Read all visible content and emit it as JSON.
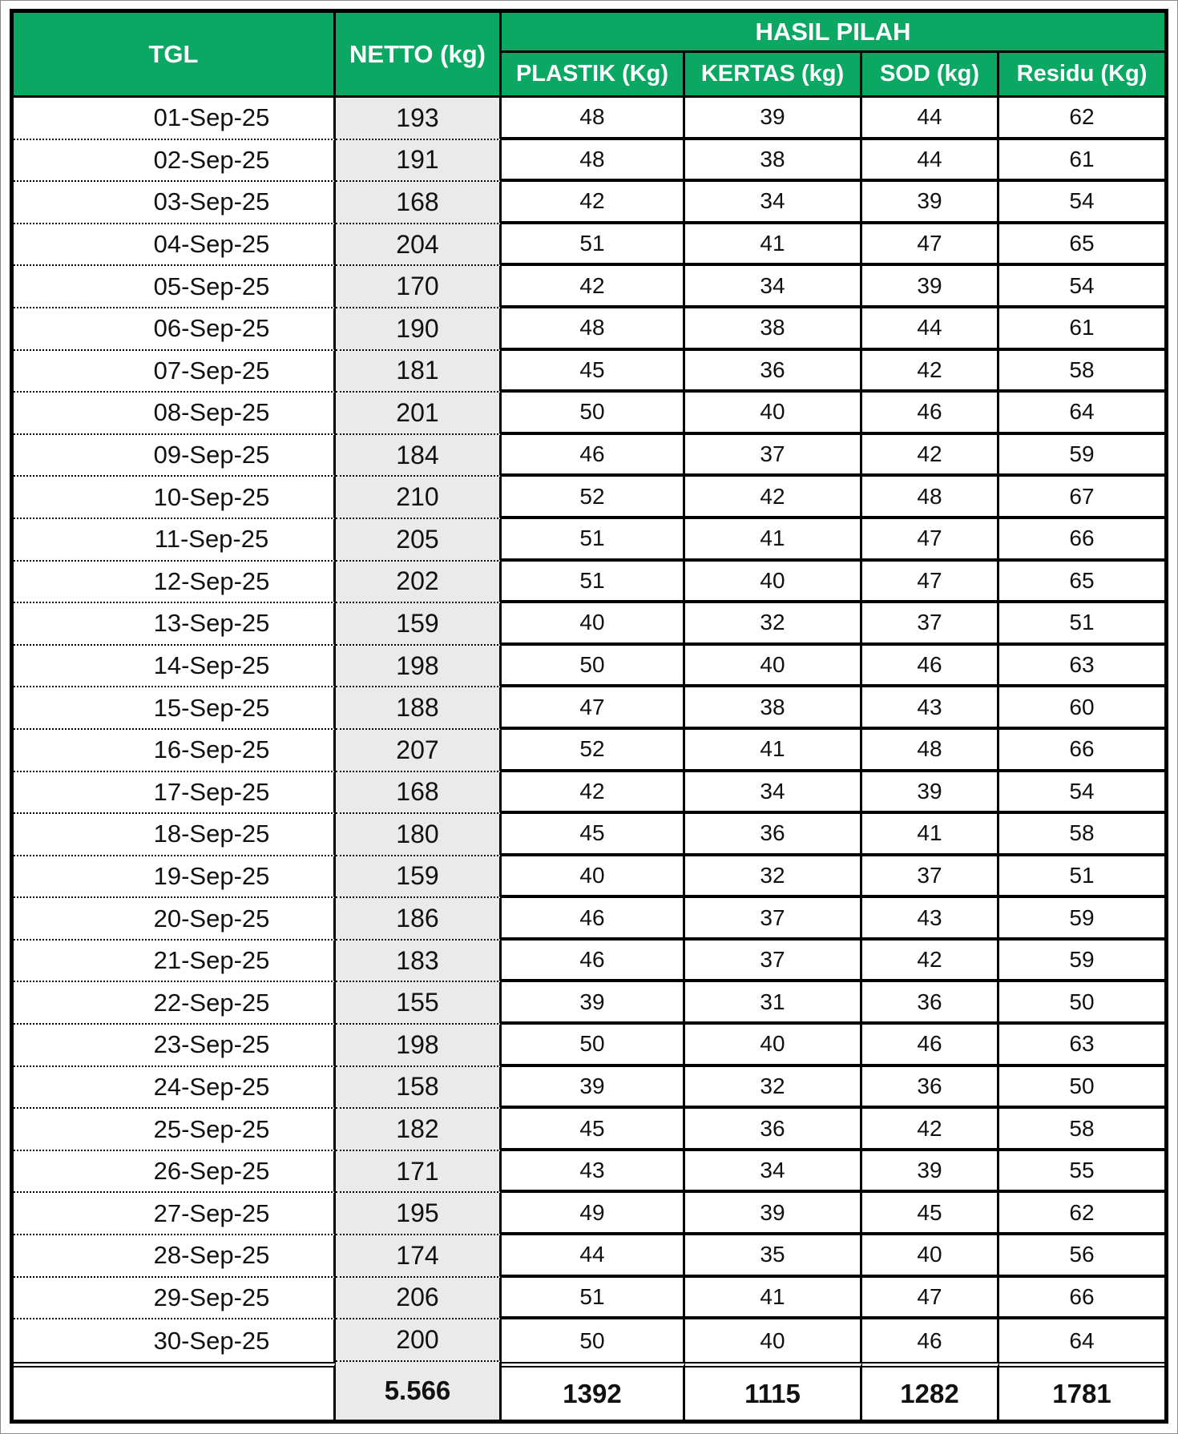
{
  "header": {
    "tgl_label": "TGL",
    "netto_label": "NETTO (kg)",
    "group_label": "HASIL PILAH",
    "sub_labels": [
      "PLASTIK (Kg)",
      "KERTAS (kg)",
      "SOD (kg)",
      "Residu (Kg)"
    ]
  },
  "chart_data": {
    "type": "table",
    "columns": [
      "TGL",
      "NETTO (kg)",
      "PLASTIK (Kg)",
      "KERTAS (kg)",
      "SOD (kg)",
      "Residu (Kg)"
    ],
    "column_group": {
      "label": "HASIL PILAH",
      "spans": [
        "PLASTIK (Kg)",
        "KERTAS (kg)",
        "SOD (kg)",
        "Residu (Kg)"
      ]
    },
    "rows": [
      [
        "01-Sep-25",
        193,
        48,
        39,
        44,
        62
      ],
      [
        "02-Sep-25",
        191,
        48,
        38,
        44,
        61
      ],
      [
        "03-Sep-25",
        168,
        42,
        34,
        39,
        54
      ],
      [
        "04-Sep-25",
        204,
        51,
        41,
        47,
        65
      ],
      [
        "05-Sep-25",
        170,
        42,
        34,
        39,
        54
      ],
      [
        "06-Sep-25",
        190,
        48,
        38,
        44,
        61
      ],
      [
        "07-Sep-25",
        181,
        45,
        36,
        42,
        58
      ],
      [
        "08-Sep-25",
        201,
        50,
        40,
        46,
        64
      ],
      [
        "09-Sep-25",
        184,
        46,
        37,
        42,
        59
      ],
      [
        "10-Sep-25",
        210,
        52,
        42,
        48,
        67
      ],
      [
        "11-Sep-25",
        205,
        51,
        41,
        47,
        66
      ],
      [
        "12-Sep-25",
        202,
        51,
        40,
        47,
        65
      ],
      [
        "13-Sep-25",
        159,
        40,
        32,
        37,
        51
      ],
      [
        "14-Sep-25",
        198,
        50,
        40,
        46,
        63
      ],
      [
        "15-Sep-25",
        188,
        47,
        38,
        43,
        60
      ],
      [
        "16-Sep-25",
        207,
        52,
        41,
        48,
        66
      ],
      [
        "17-Sep-25",
        168,
        42,
        34,
        39,
        54
      ],
      [
        "18-Sep-25",
        180,
        45,
        36,
        41,
        58
      ],
      [
        "19-Sep-25",
        159,
        40,
        32,
        37,
        51
      ],
      [
        "20-Sep-25",
        186,
        46,
        37,
        43,
        59
      ],
      [
        "21-Sep-25",
        183,
        46,
        37,
        42,
        59
      ],
      [
        "22-Sep-25",
        155,
        39,
        31,
        36,
        50
      ],
      [
        "23-Sep-25",
        198,
        50,
        40,
        46,
        63
      ],
      [
        "24-Sep-25",
        158,
        39,
        32,
        36,
        50
      ],
      [
        "25-Sep-25",
        182,
        45,
        36,
        42,
        58
      ],
      [
        "26-Sep-25",
        171,
        43,
        34,
        39,
        55
      ],
      [
        "27-Sep-25",
        195,
        49,
        39,
        45,
        62
      ],
      [
        "28-Sep-25",
        174,
        44,
        35,
        40,
        56
      ],
      [
        "29-Sep-25",
        206,
        51,
        41,
        47,
        66
      ],
      [
        "30-Sep-25",
        200,
        50,
        40,
        46,
        64
      ]
    ],
    "totals": [
      "",
      "5.566",
      "1392",
      "1115",
      "1282",
      "1781"
    ]
  },
  "colors": {
    "header_bg": "#0aa863",
    "header_text": "#ffffff",
    "netto_column_bg": "#eaeaea",
    "border": "#000000",
    "body_text": "#111111"
  }
}
